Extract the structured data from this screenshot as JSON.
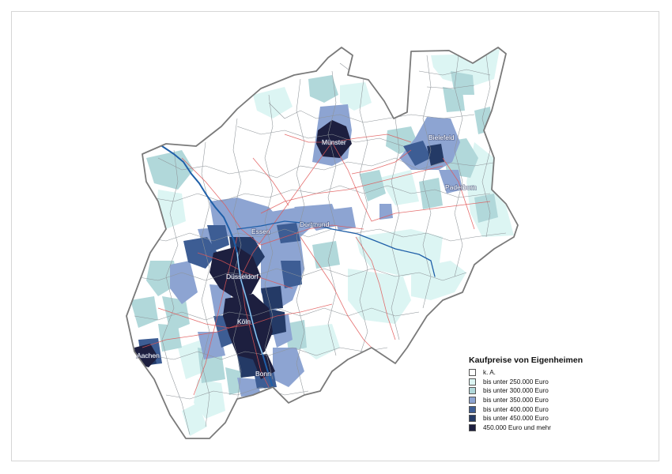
{
  "legend": {
    "title": "Kaufpreise von Eigenheimen",
    "items": [
      {
        "label": "k. A.",
        "color": "#ffffff"
      },
      {
        "label": "bis unter 250.000 Euro",
        "color": "#dcf5f3"
      },
      {
        "label": "bis unter 300.000 Euro",
        "color": "#b1d8da"
      },
      {
        "label": "bis unter 350.000 Euro",
        "color": "#8da4d2"
      },
      {
        "label": "bis unter 400.000 Euro",
        "color": "#3d5d94"
      },
      {
        "label": "bis unter 450.000 Euro",
        "color": "#243a66"
      },
      {
        "label": "450.000 Euro und mehr",
        "color": "#1d1f3f"
      }
    ]
  },
  "cities": {
    "muenster": "Münster",
    "bielefeld": "Bielefeld",
    "paderborn": "Paderborn",
    "essen": "Essen",
    "dortmund": "Dortmund",
    "duesseldorf": "Düsseldorf",
    "koeln": "Köln",
    "aachen": "Aachen",
    "bonn": "Bonn"
  },
  "colors": {
    "border": "#7a7a7a",
    "roads": "#e05656",
    "rivers": "#1f5fa8",
    "municipality_lines": "#9aa0a6"
  }
}
